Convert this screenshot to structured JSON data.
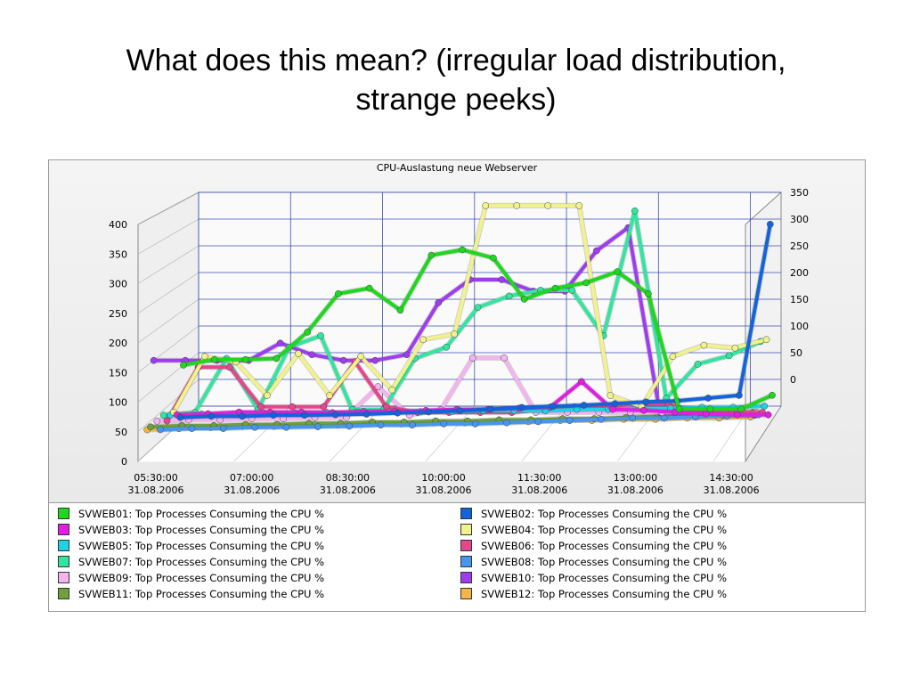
{
  "slide": {
    "title_line1": "What does this mean? (irregular load distribution,",
    "title_line2": "strange peeks)"
  },
  "chart_data": {
    "type": "line",
    "title": "CPU-Auslastung neue Webserver",
    "style": "3d",
    "grid": true,
    "legend_position": "bottom",
    "ylim": [
      0,
      400
    ],
    "y_ticks": [
      "0",
      "50",
      "100",
      "150",
      "200",
      "250",
      "300",
      "350",
      "400"
    ],
    "x": [
      "05:30:00",
      "06:00:00",
      "06:30:00",
      "07:00:00",
      "07:30:00",
      "08:00:00",
      "08:30:00",
      "09:00:00",
      "09:30:00",
      "10:00:00",
      "10:30:00",
      "11:00:00",
      "11:30:00",
      "12:00:00",
      "12:30:00",
      "13:00:00",
      "13:30:00",
      "14:00:00",
      "14:30:00",
      "15:00:00"
    ],
    "x_tick_labels": [
      {
        "time": "05:30:00",
        "date": "31.08.2006"
      },
      {
        "time": "07:00:00",
        "date": "31.08.2006"
      },
      {
        "time": "08:30:00",
        "date": "31.08.2006"
      },
      {
        "time": "10:00:00",
        "date": "31.08.2006"
      },
      {
        "time": "11:30:00",
        "date": "31.08.2006"
      },
      {
        "time": "13:00:00",
        "date": "31.08.2006"
      },
      {
        "time": "14:30:00",
        "date": "31.08.2006"
      }
    ],
    "series": [
      {
        "name": "SVWEB01: Top Processes Consuming the CPU %",
        "color": "#1ed81e",
        "values": [
          100,
          110,
          110,
          112,
          160,
          230,
          240,
          200,
          300,
          310,
          295,
          220,
          240,
          250,
          270,
          230,
          20,
          20,
          20,
          45
        ]
      },
      {
        "name": "SVWEB02: Top Processes Consuming the CPU %",
        "color": "#1463dc",
        "values": [
          10,
          12,
          12,
          14,
          14,
          15,
          16,
          18,
          20,
          22,
          25,
          28,
          30,
          32,
          35,
          38,
          40,
          45,
          50,
          360
        ]
      },
      {
        "name": "SVWEB03: Top Processes Consuming the CPU %",
        "color": "#e11ee1",
        "values": [
          20,
          22,
          25,
          25,
          25,
          24,
          26,
          26,
          28,
          30,
          30,
          32,
          34,
          80,
          30,
          28,
          25,
          22,
          20,
          20
        ]
      },
      {
        "name": "SVWEB04: Top Processes Consuming the CPU %",
        "color": "#f2f28a",
        "values": [
          30,
          130,
          120,
          60,
          135,
          60,
          130,
          70,
          160,
          170,
          400,
          400,
          400,
          400,
          60,
          40,
          130,
          150,
          145,
          160
        ]
      },
      {
        "name": "SVWEB05: Top Processes Consuming the CPU %",
        "color": "#1ed2e6",
        "values": [
          30,
          32,
          32,
          34,
          34,
          35,
          35,
          36,
          36,
          36,
          38,
          38,
          38,
          40,
          40,
          42,
          42,
          44,
          44,
          46
        ]
      },
      {
        "name": "SVWEB06: Top Processes Consuming the CPU %",
        "color": "#e6468c",
        "values": [
          25,
          120,
          120,
          50,
          50,
          50,
          130,
          50,
          40,
          40,
          40,
          40,
          45,
          50,
          50,
          55,
          55,
          40,
          40,
          40
        ]
      },
      {
        "name": "SVWEB07: Top Processes Consuming the CPU %",
        "color": "#32e6a0",
        "values": [
          40,
          45,
          140,
          50,
          160,
          180,
          50,
          50,
          140,
          160,
          230,
          250,
          260,
          260,
          180,
          400,
          70,
          130,
          145,
          170
        ]
      },
      {
        "name": "SVWEB08: Top Processes Consuming the CPU %",
        "color": "#4696f0",
        "values": [
          20,
          22,
          22,
          24,
          24,
          25,
          26,
          28,
          28,
          30,
          30,
          32,
          34,
          36,
          38,
          40,
          40,
          42,
          44,
          46
        ]
      },
      {
        "name": "SVWEB09: Top Processes Consuming the CPU %",
        "color": "#f5b4f0",
        "values": [
          40,
          42,
          42,
          44,
          44,
          46,
          46,
          100,
          50,
          60,
          150,
          150,
          55,
          55,
          55,
          55,
          55,
          55,
          55,
          55
        ]
      },
      {
        "name": "SVWEB10: Top Processes Consuming the CPU %",
        "color": "#a03cf0",
        "values": [
          150,
          150,
          150,
          150,
          180,
          160,
          150,
          150,
          160,
          250,
          290,
          290,
          270,
          270,
          340,
          380,
          60,
          55,
          55,
          55
        ]
      },
      {
        "name": "SVWEB11: Top Processes Consuming the CPU %",
        "color": "#6ea03c",
        "values": [
          40,
          42,
          42,
          44,
          44,
          46,
          46,
          48,
          48,
          50,
          50,
          52,
          52,
          54,
          54,
          56,
          58,
          60,
          62,
          65
        ]
      },
      {
        "name": "SVWEB12: Top Processes Consuming the CPU %",
        "color": "#f5b446",
        "values": [
          40,
          42,
          44,
          46,
          46,
          48,
          48,
          50,
          50,
          52,
          52,
          54,
          54,
          56,
          56,
          58,
          58,
          60,
          60,
          62
        ]
      }
    ]
  }
}
